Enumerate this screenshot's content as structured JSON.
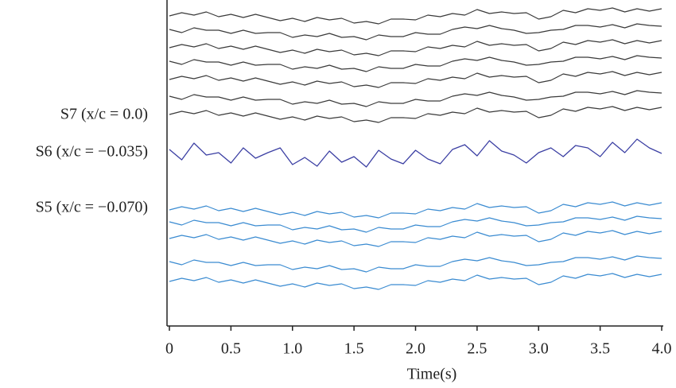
{
  "chart_data": {
    "type": "line",
    "x_label": "Time(s)",
    "annotations": [
      "S7 (x/c = 0.0)",
      "S6 (x/c = −0.035)",
      "S5 (x/c = −0.070)"
    ],
    "xlim": [
      0,
      4
    ],
    "xticks": [
      0,
      0.5,
      {
        "value": 1,
        "label": "1.0"
      },
      1.5,
      {
        "value": 2,
        "label": "2.0"
      },
      2.5,
      {
        "value": 3,
        "label": "3.0"
      },
      3.5,
      {
        "value": 4,
        "label": "4.0"
      }
    ],
    "x": [
      0,
      0.1,
      0.2,
      0.3,
      0.4,
      0.5,
      0.6,
      0.7,
      0.8,
      0.9,
      1,
      1.1,
      1.2,
      1.3,
      1.4,
      1.5,
      1.6,
      1.7,
      1.8,
      1.9,
      2,
      2.1,
      2.2,
      2.3,
      2.4,
      2.5,
      2.6,
      2.7,
      2.8,
      2.9,
      3,
      3.1,
      3.2,
      3.3,
      3.4,
      3.5,
      3.6,
      3.7,
      3.8,
      3.9,
      4
    ],
    "series": [
      {
        "color": "#3a3a3a",
        "values": [
          380,
          384,
          381,
          385,
          379,
          382,
          378,
          382,
          378,
          374,
          377,
          373,
          378,
          375,
          377,
          371,
          373,
          370,
          376,
          376,
          375,
          381,
          379,
          383,
          381,
          388,
          383,
          385,
          383,
          384,
          376,
          379,
          387,
          384,
          389,
          387,
          390,
          385,
          389,
          386,
          389
        ]
      },
      {
        "color": "#3a3a3a",
        "values": [
          363,
          359,
          365,
          362,
          362,
          358,
          362,
          358,
          359,
          359,
          353,
          356,
          354,
          358,
          353,
          354,
          350,
          356,
          354,
          354,
          359,
          357,
          357,
          363,
          366,
          364,
          368,
          364,
          362,
          358,
          359,
          362,
          363,
          368,
          368,
          366,
          369,
          365,
          370,
          368,
          367
        ]
      },
      {
        "color": "#3a3a3a",
        "values": [
          340,
          344,
          341,
          345,
          339,
          342,
          338,
          342,
          338,
          334,
          337,
          333,
          338,
          335,
          337,
          331,
          333,
          330,
          336,
          336,
          335,
          341,
          339,
          343,
          341,
          348,
          343,
          345,
          343,
          344,
          336,
          339,
          347,
          344,
          349,
          347,
          350,
          345,
          349,
          346,
          349
        ]
      },
      {
        "color": "#3a3a3a",
        "values": [
          323,
          319,
          325,
          322,
          322,
          318,
          322,
          318,
          319,
          319,
          313,
          316,
          314,
          318,
          313,
          314,
          310,
          316,
          314,
          314,
          319,
          317,
          317,
          323,
          326,
          324,
          328,
          324,
          322,
          318,
          319,
          322,
          323,
          328,
          328,
          326,
          329,
          325,
          330,
          328,
          327
        ]
      },
      {
        "color": "#3a3a3a",
        "values": [
          300,
          304,
          301,
          305,
          299,
          302,
          298,
          302,
          298,
          294,
          297,
          293,
          298,
          295,
          297,
          291,
          293,
          290,
          296,
          296,
          295,
          301,
          299,
          303,
          301,
          308,
          303,
          305,
          303,
          304,
          296,
          299,
          307,
          304,
          309,
          307,
          310,
          305,
          309,
          306,
          309
        ]
      },
      {
        "color": "#3a3a3a",
        "values": [
          279,
          275,
          281,
          278,
          278,
          274,
          278,
          274,
          275,
          275,
          269,
          272,
          270,
          274,
          269,
          270,
          266,
          272,
          270,
          270,
          275,
          273,
          273,
          279,
          282,
          280,
          284,
          280,
          278,
          274,
          275,
          278,
          279,
          284,
          284,
          282,
          285,
          281,
          286,
          284,
          283
        ]
      },
      {
        "color": "#3a3a3a",
        "values": [
          256,
          260,
          257,
          261,
          255,
          258,
          254,
          258,
          254,
          250,
          253,
          249,
          254,
          251,
          253,
          247,
          249,
          246,
          252,
          252,
          251,
          257,
          255,
          259,
          257,
          264,
          259,
          261,
          259,
          260,
          252,
          255,
          263,
          260,
          265,
          263,
          266,
          261,
          265,
          262,
          265
        ]
      },
      {
        "color": "#3b3fa3",
        "values": [
          212,
          199,
          220,
          205,
          208,
          195,
          214,
          201,
          208,
          214,
          193,
          202,
          191,
          210,
          196,
          203,
          190,
          211,
          200,
          194,
          211,
          200,
          194,
          212,
          218,
          204,
          223,
          210,
          205,
          195,
          208,
          214,
          203,
          217,
          214,
          203,
          221,
          208,
          225,
          214,
          207
        ]
      },
      {
        "color": "#3a8bd1",
        "values": [
          136,
          140,
          137,
          141,
          135,
          138,
          134,
          138,
          134,
          130,
          133,
          129,
          134,
          131,
          133,
          127,
          129,
          126,
          132,
          132,
          131,
          137,
          135,
          139,
          137,
          144,
          139,
          141,
          139,
          140,
          132,
          135,
          143,
          140,
          145,
          143,
          146,
          141,
          145,
          142,
          145
        ]
      },
      {
        "color": "#3a8bd1",
        "values": [
          121,
          117,
          123,
          120,
          120,
          116,
          120,
          116,
          117,
          117,
          111,
          114,
          112,
          116,
          111,
          112,
          108,
          114,
          112,
          112,
          117,
          115,
          115,
          121,
          124,
          122,
          126,
          122,
          120,
          116,
          117,
          120,
          121,
          126,
          126,
          124,
          127,
          123,
          128,
          126,
          125
        ]
      },
      {
        "color": "#3a8bd1",
        "values": [
          100,
          104,
          101,
          105,
          99,
          102,
          98,
          102,
          98,
          94,
          97,
          93,
          98,
          95,
          97,
          91,
          93,
          90,
          96,
          96,
          95,
          101,
          99,
          103,
          101,
          108,
          103,
          105,
          103,
          104,
          96,
          99,
          107,
          104,
          109,
          107,
          110,
          105,
          109,
          106,
          109
        ]
      },
      {
        "color": "#3a8bd1",
        "values": [
          71,
          67,
          73,
          70,
          70,
          66,
          70,
          66,
          67,
          67,
          61,
          64,
          62,
          66,
          61,
          62,
          58,
          64,
          62,
          62,
          67,
          65,
          65,
          71,
          74,
          72,
          76,
          72,
          70,
          66,
          67,
          70,
          71,
          76,
          76,
          74,
          77,
          73,
          78,
          76,
          75
        ]
      },
      {
        "color": "#3a8bd1",
        "values": [
          46,
          50,
          47,
          51,
          45,
          48,
          44,
          48,
          44,
          40,
          43,
          39,
          44,
          41,
          43,
          37,
          39,
          36,
          42,
          42,
          41,
          47,
          45,
          49,
          47,
          54,
          49,
          51,
          49,
          50,
          42,
          45,
          53,
          50,
          55,
          53,
          56,
          51,
          55,
          52,
          55
        ]
      }
    ]
  }
}
